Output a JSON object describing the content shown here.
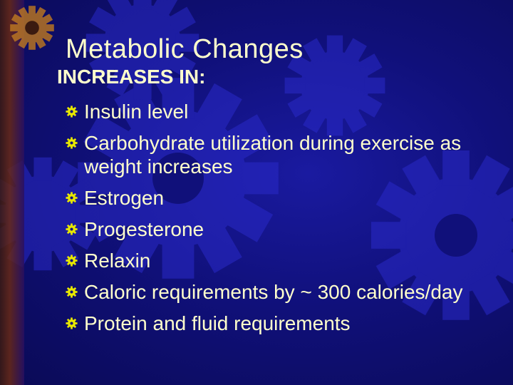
{
  "slide": {
    "title": "Metabolic Changes",
    "heading": "INCREASES IN:",
    "bullet_icon": "yellow-gear-bullet-icon",
    "bullets": [
      "Insulin level",
      "Carbohydrate utilization during exercise as weight increases",
      "Estrogen",
      "Progesterone",
      "Relaxin",
      "Caloric requirements by ~ 300 calories/day",
      "Protein and fluid requirements"
    ]
  },
  "colors": {
    "background": "#10107a",
    "text": "#ffffcc",
    "bullet": "#e8e800",
    "gear": "#3a3ae0"
  }
}
